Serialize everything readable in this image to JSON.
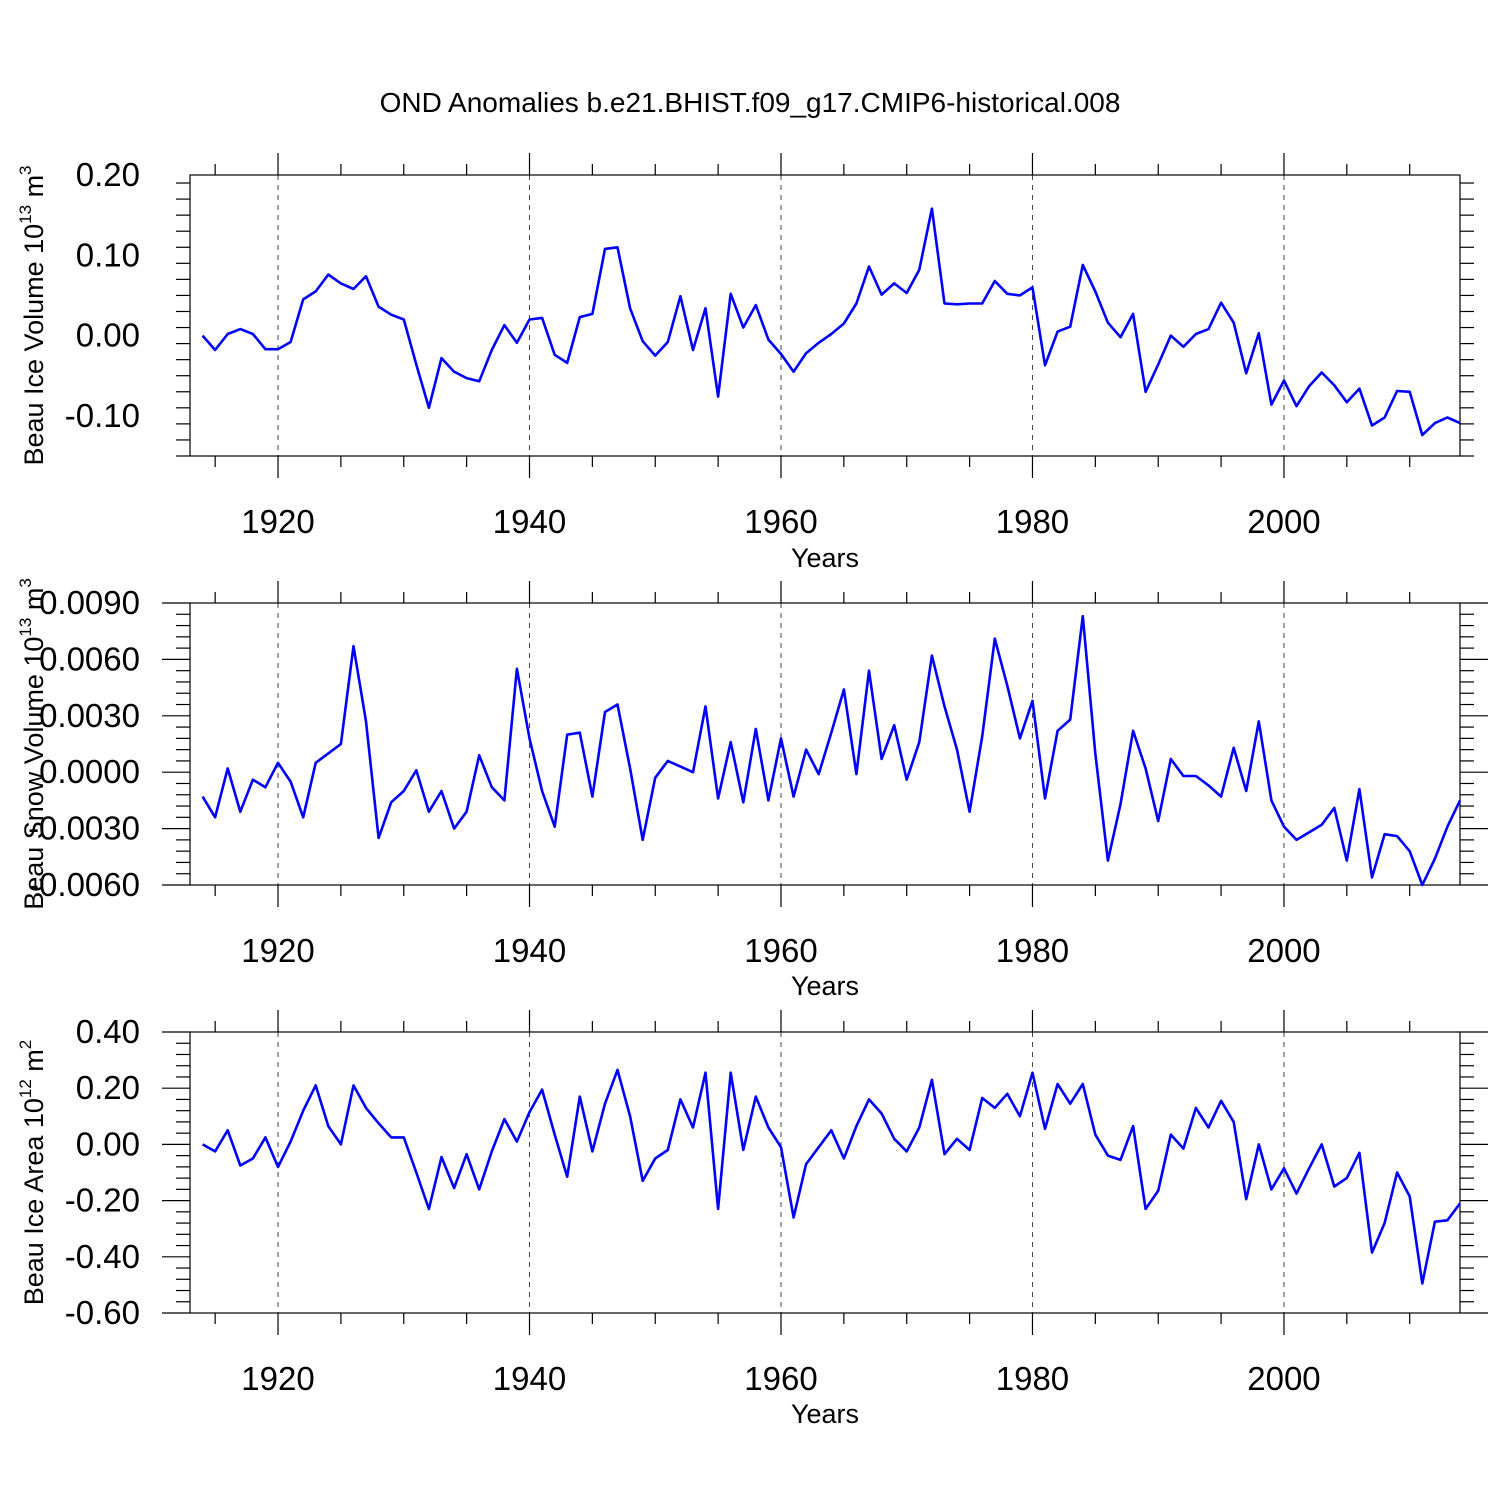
{
  "title": "OND Anomalies b.e21.BHIST.f09_g17.CMIP6-historical.008",
  "chart_data": [
    {
      "type": "line",
      "xlabel": "Years",
      "ylabel_main": "Beau Ice Volume 10",
      "ylabel_exp": "13",
      "ylabel_unit": " m",
      "ylabel_unit_exp": "3",
      "xlim": [
        1913,
        2014
      ],
      "ylim": [
        -0.15,
        0.2
      ],
      "xticks": [
        1920,
        1940,
        1960,
        1980,
        2000
      ],
      "xtick_labels": [
        "1920",
        "1940",
        "1960",
        "1980",
        "2000"
      ],
      "yticks": [
        -0.1,
        0.0,
        0.1,
        0.2
      ],
      "ytick_labels": [
        "-0.10",
        "0.00",
        "0.10",
        "0.20"
      ],
      "color": "#0000ff",
      "x": [
        1914,
        1915,
        1916,
        1917,
        1918,
        1919,
        1920,
        1921,
        1922,
        1923,
        1924,
        1925,
        1926,
        1927,
        1928,
        1929,
        1930,
        1931,
        1932,
        1933,
        1934,
        1935,
        1936,
        1937,
        1938,
        1939,
        1940,
        1941,
        1942,
        1943,
        1944,
        1945,
        1946,
        1947,
        1948,
        1949,
        1950,
        1951,
        1952,
        1953,
        1954,
        1955,
        1956,
        1957,
        1958,
        1959,
        1960,
        1961,
        1962,
        1963,
        1964,
        1965,
        1966,
        1967,
        1968,
        1969,
        1970,
        1971,
        1972,
        1973,
        1974,
        1975,
        1976,
        1977,
        1978,
        1979,
        1980,
        1981,
        1982,
        1983,
        1984,
        1985,
        1986,
        1987,
        1988,
        1989,
        1990,
        1991,
        1992,
        1993,
        1994,
        1995,
        1996,
        1997,
        1998,
        1999,
        2000,
        2001,
        2002,
        2003,
        2004,
        2005,
        2006,
        2007,
        2008,
        2009,
        2010,
        2011,
        2012,
        2013,
        2014
      ],
      "values": [
        0.0,
        -0.018,
        0.002,
        0.008,
        0.002,
        -0.017,
        -0.017,
        -0.008,
        0.045,
        0.055,
        0.076,
        0.065,
        0.058,
        0.074,
        0.036,
        0.026,
        0.02,
        -0.036,
        -0.09,
        -0.028,
        -0.045,
        -0.053,
        -0.057,
        -0.018,
        0.013,
        -0.009,
        0.02,
        0.022,
        -0.024,
        -0.034,
        0.023,
        0.027,
        0.108,
        0.11,
        0.034,
        -0.007,
        -0.025,
        -0.008,
        0.049,
        -0.018,
        0.034,
        -0.076,
        0.052,
        0.01,
        0.038,
        -0.005,
        -0.023,
        -0.045,
        -0.022,
        -0.009,
        0.002,
        0.015,
        0.04,
        0.086,
        0.051,
        0.065,
        0.053,
        0.082,
        0.158,
        0.04,
        0.039,
        0.04,
        0.04,
        0.068,
        0.052,
        0.05,
        0.06,
        -0.037,
        0.005,
        0.011,
        0.088,
        0.055,
        0.016,
        -0.002,
        0.027,
        -0.07,
        -0.036,
        0.0,
        -0.014,
        0.002,
        0.008,
        0.041,
        0.016,
        -0.047,
        0.003,
        -0.086,
        -0.056,
        -0.088,
        -0.063,
        -0.046,
        -0.062,
        -0.083,
        -0.066,
        -0.112,
        -0.102,
        -0.069,
        -0.07,
        -0.124,
        -0.109,
        -0.102,
        -0.109
      ]
    },
    {
      "type": "line",
      "xlabel": "Years",
      "ylabel_main": "Beau Snow Volume 10",
      "ylabel_exp": "13",
      "ylabel_unit": " m",
      "ylabel_unit_exp": "3",
      "xlim": [
        1913,
        2014
      ],
      "ylim": [
        -0.006,
        0.009
      ],
      "xticks": [
        1920,
        1940,
        1960,
        1980,
        2000
      ],
      "xtick_labels": [
        "1920",
        "1940",
        "1960",
        "1980",
        "2000"
      ],
      "yticks": [
        -0.006,
        -0.003,
        0.0,
        0.003,
        0.006,
        0.009
      ],
      "ytick_labels": [
        "-0.0060",
        "-0.0030",
        "0.0000",
        "0.0030",
        "0.0060",
        "0.0090"
      ],
      "color": "#0000ff",
      "x": [
        1914,
        1915,
        1916,
        1917,
        1918,
        1919,
        1920,
        1921,
        1922,
        1923,
        1924,
        1925,
        1926,
        1927,
        1928,
        1929,
        1930,
        1931,
        1932,
        1933,
        1934,
        1935,
        1936,
        1937,
        1938,
        1939,
        1940,
        1941,
        1942,
        1943,
        1944,
        1945,
        1946,
        1947,
        1948,
        1949,
        1950,
        1951,
        1952,
        1953,
        1954,
        1955,
        1956,
        1957,
        1958,
        1959,
        1960,
        1961,
        1962,
        1963,
        1964,
        1965,
        1966,
        1967,
        1968,
        1969,
        1970,
        1971,
        1972,
        1973,
        1974,
        1975,
        1976,
        1977,
        1978,
        1979,
        1980,
        1981,
        1982,
        1983,
        1984,
        1985,
        1986,
        1987,
        1988,
        1989,
        1990,
        1991,
        1992,
        1993,
        1994,
        1995,
        1996,
        1997,
        1998,
        1999,
        2000,
        2001,
        2002,
        2003,
        2004,
        2005,
        2006,
        2007,
        2008,
        2009,
        2010,
        2011,
        2012,
        2013,
        2014
      ],
      "values": [
        -0.0013,
        -0.0024,
        0.0002,
        -0.0021,
        -0.0004,
        -0.0008,
        0.0005,
        -0.0005,
        -0.0024,
        0.0005,
        0.001,
        0.0015,
        0.0067,
        0.0027,
        -0.0035,
        -0.0016,
        -0.001,
        0.0001,
        -0.0021,
        -0.001,
        -0.003,
        -0.0021,
        0.0009,
        -0.0008,
        -0.0015,
        0.0055,
        0.0018,
        -0.001,
        -0.0029,
        0.002,
        0.0021,
        -0.0013,
        0.0032,
        0.0036,
        0.0002,
        -0.0036,
        -0.0003,
        0.0006,
        0.0003,
        0.0,
        0.0035,
        -0.0014,
        0.0016,
        -0.0016,
        0.0023,
        -0.0015,
        0.0018,
        -0.0013,
        0.0012,
        -0.0001,
        0.0021,
        0.0044,
        -0.0001,
        0.0054,
        0.0007,
        0.0025,
        -0.0004,
        0.0016,
        0.0062,
        0.0035,
        0.0012,
        -0.0021,
        0.0019,
        0.0071,
        0.0046,
        0.0018,
        0.0038,
        -0.0014,
        0.0022,
        0.0028,
        0.0083,
        0.001,
        -0.0047,
        -0.0017,
        0.0022,
        0.0002,
        -0.0026,
        0.0007,
        -0.0002,
        -0.0002,
        -0.0007,
        -0.0013,
        0.0013,
        -0.001,
        0.0027,
        -0.0015,
        -0.0029,
        -0.0036,
        -0.0032,
        -0.0028,
        -0.0019,
        -0.0047,
        -0.0009,
        -0.0056,
        -0.0033,
        -0.0034,
        -0.0042,
        -0.006,
        -0.0046,
        -0.0029,
        -0.0015
      ]
    },
    {
      "type": "line",
      "xlabel": "Years",
      "ylabel_main": "Beau Ice Area 10",
      "ylabel_exp": "12",
      "ylabel_unit": " m",
      "ylabel_unit_exp": "2",
      "xlim": [
        1913,
        2014
      ],
      "ylim": [
        -0.6,
        0.4
      ],
      "xticks": [
        1920,
        1940,
        1960,
        1980,
        2000
      ],
      "xtick_labels": [
        "1920",
        "1940",
        "1960",
        "1980",
        "2000"
      ],
      "yticks": [
        -0.6,
        -0.4,
        -0.2,
        0.0,
        0.2,
        0.4
      ],
      "ytick_labels": [
        "-0.60",
        "-0.40",
        "-0.20",
        "0.00",
        "0.20",
        "0.40"
      ],
      "color": "#0000ff",
      "x": [
        1914,
        1915,
        1916,
        1917,
        1918,
        1919,
        1920,
        1921,
        1922,
        1923,
        1924,
        1925,
        1926,
        1927,
        1928,
        1929,
        1930,
        1931,
        1932,
        1933,
        1934,
        1935,
        1936,
        1937,
        1938,
        1939,
        1940,
        1941,
        1942,
        1943,
        1944,
        1945,
        1946,
        1947,
        1948,
        1949,
        1950,
        1951,
        1952,
        1953,
        1954,
        1955,
        1956,
        1957,
        1958,
        1959,
        1960,
        1961,
        1962,
        1963,
        1964,
        1965,
        1966,
        1967,
        1968,
        1969,
        1970,
        1971,
        1972,
        1973,
        1974,
        1975,
        1976,
        1977,
        1978,
        1979,
        1980,
        1981,
        1982,
        1983,
        1984,
        1985,
        1986,
        1987,
        1988,
        1989,
        1990,
        1991,
        1992,
        1993,
        1994,
        1995,
        1996,
        1997,
        1998,
        1999,
        2000,
        2001,
        2002,
        2003,
        2004,
        2005,
        2006,
        2007,
        2008,
        2009,
        2010,
        2011,
        2012,
        2013,
        2014
      ],
      "values": [
        0.0,
        -0.025,
        0.05,
        -0.075,
        -0.05,
        0.025,
        -0.08,
        0.01,
        0.12,
        0.21,
        0.065,
        0.0,
        0.21,
        0.13,
        0.075,
        0.025,
        0.025,
        -0.1,
        -0.23,
        -0.045,
        -0.155,
        -0.035,
        -0.16,
        -0.025,
        0.09,
        0.01,
        0.115,
        0.195,
        0.035,
        -0.115,
        0.17,
        -0.025,
        0.145,
        0.265,
        0.1,
        -0.13,
        -0.05,
        -0.02,
        0.16,
        0.06,
        0.255,
        -0.23,
        0.255,
        -0.02,
        0.17,
        0.06,
        -0.01,
        -0.26,
        -0.07,
        -0.01,
        0.05,
        -0.05,
        0.065,
        0.16,
        0.11,
        0.02,
        -0.025,
        0.06,
        0.23,
        -0.035,
        0.02,
        -0.02,
        0.165,
        0.13,
        0.18,
        0.1,
        0.255,
        0.055,
        0.215,
        0.145,
        0.215,
        0.035,
        -0.04,
        -0.055,
        0.065,
        -0.23,
        -0.165,
        0.035,
        -0.015,
        0.13,
        0.06,
        0.155,
        0.08,
        -0.195,
        0.0,
        -0.16,
        -0.085,
        -0.175,
        -0.085,
        0.0,
        -0.15,
        -0.12,
        -0.03,
        -0.385,
        -0.28,
        -0.1,
        -0.185,
        -0.495,
        -0.275,
        -0.27,
        -0.21
      ]
    }
  ]
}
